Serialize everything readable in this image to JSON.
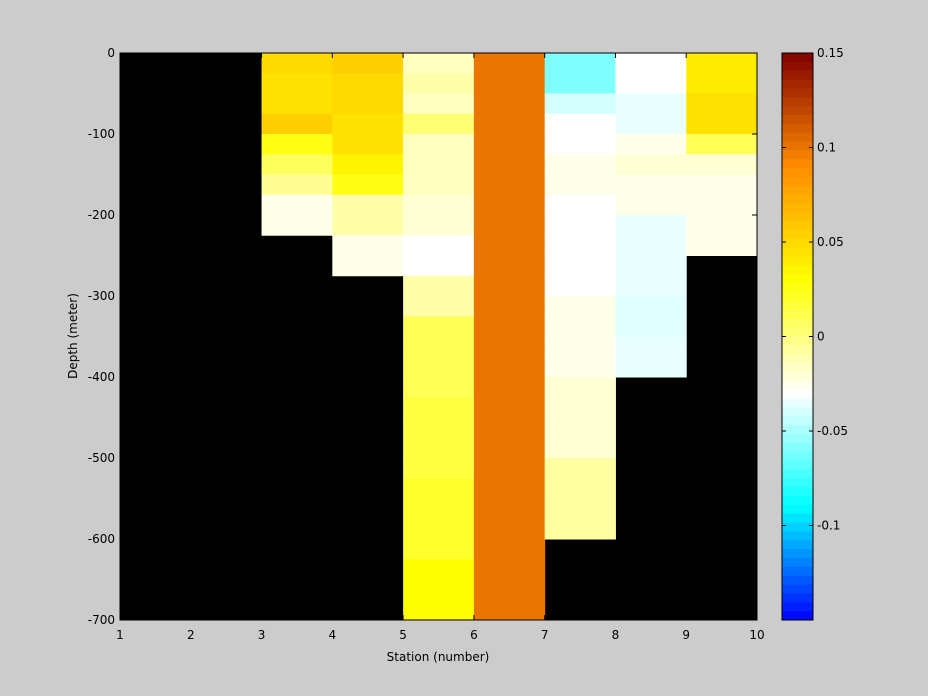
{
  "chart_data": {
    "type": "heatmap",
    "xlabel": "Station (number)",
    "ylabel": "Depth (meter)",
    "xlim": [
      1,
      10
    ],
    "ylim": [
      -700,
      0
    ],
    "x_ticks": [
      1,
      2,
      3,
      4,
      5,
      6,
      7,
      8,
      9,
      10
    ],
    "y_ticks": [
      0,
      -100,
      -200,
      -300,
      -400,
      -500,
      -600,
      -700
    ],
    "background_color": "#000000",
    "colorbar": {
      "clim": [
        -0.15,
        0.15
      ],
      "ticks": [
        0.15,
        0.1,
        0.05,
        0,
        -0.05,
        -0.1
      ],
      "colormap": [
        "#0000ff",
        "#00ffff",
        "#ffffff",
        "#ffff00",
        "#ff8c00",
        "#800000"
      ]
    },
    "cell_height_m": 25,
    "columns": [
      {
        "x0": 3,
        "x1": 4,
        "cells": [
          {
            "top": 0,
            "bottom": -25,
            "value": 0.05
          },
          {
            "top": -25,
            "bottom": -50,
            "value": 0.045
          },
          {
            "top": -50,
            "bottom": -75,
            "value": 0.045
          },
          {
            "top": -75,
            "bottom": -100,
            "value": 0.055
          },
          {
            "top": -100,
            "bottom": -125,
            "value": 0.025
          },
          {
            "top": -125,
            "bottom": -150,
            "value": 0.008
          },
          {
            "top": -150,
            "bottom": -175,
            "value": -0.005
          },
          {
            "top": -175,
            "bottom": -200,
            "value": -0.025
          },
          {
            "top": -200,
            "bottom": -225,
            "value": -0.025
          }
        ]
      },
      {
        "x0": 4,
        "x1": 5,
        "cells": [
          {
            "top": 0,
            "bottom": -25,
            "value": 0.055
          },
          {
            "top": -25,
            "bottom": -50,
            "value": 0.05
          },
          {
            "top": -50,
            "bottom": -75,
            "value": 0.05
          },
          {
            "top": -75,
            "bottom": -100,
            "value": 0.045
          },
          {
            "top": -100,
            "bottom": -125,
            "value": 0.045
          },
          {
            "top": -125,
            "bottom": -150,
            "value": 0.035
          },
          {
            "top": -150,
            "bottom": -175,
            "value": 0.025
          },
          {
            "top": -175,
            "bottom": -200,
            "value": -0.01
          },
          {
            "top": -200,
            "bottom": -225,
            "value": -0.01
          },
          {
            "top": -225,
            "bottom": -250,
            "value": -0.025
          },
          {
            "top": -250,
            "bottom": -275,
            "value": -0.025
          }
        ]
      },
      {
        "x0": 5,
        "x1": 6,
        "cells": [
          {
            "top": 0,
            "bottom": -25,
            "value": -0.015
          },
          {
            "top": -25,
            "bottom": -50,
            "value": -0.01
          },
          {
            "top": -50,
            "bottom": -75,
            "value": -0.015
          },
          {
            "top": -75,
            "bottom": -100,
            "value": 0.003
          },
          {
            "top": -100,
            "bottom": -125,
            "value": -0.015
          },
          {
            "top": -125,
            "bottom": -150,
            "value": -0.015
          },
          {
            "top": -150,
            "bottom": -175,
            "value": -0.015
          },
          {
            "top": -175,
            "bottom": -200,
            "value": -0.02
          },
          {
            "top": -200,
            "bottom": -225,
            "value": -0.02
          },
          {
            "top": -225,
            "bottom": -250,
            "value": -0.03
          },
          {
            "top": -250,
            "bottom": -275,
            "value": -0.03
          },
          {
            "top": -275,
            "bottom": -300,
            "value": -0.01
          },
          {
            "top": -300,
            "bottom": -325,
            "value": -0.01
          },
          {
            "top": -325,
            "bottom": -350,
            "value": 0.01
          },
          {
            "top": -350,
            "bottom": -375,
            "value": 0.01
          },
          {
            "top": -375,
            "bottom": -400,
            "value": 0.01
          },
          {
            "top": -400,
            "bottom": -425,
            "value": 0.01
          },
          {
            "top": -425,
            "bottom": -450,
            "value": 0.015
          },
          {
            "top": -450,
            "bottom": -475,
            "value": 0.015
          },
          {
            "top": -475,
            "bottom": -500,
            "value": 0.015
          },
          {
            "top": -500,
            "bottom": -525,
            "value": 0.015
          },
          {
            "top": -525,
            "bottom": -550,
            "value": 0.02
          },
          {
            "top": -550,
            "bottom": -575,
            "value": 0.02
          },
          {
            "top": -575,
            "bottom": -600,
            "value": 0.02
          },
          {
            "top": -600,
            "bottom": -625,
            "value": 0.02
          },
          {
            "top": -625,
            "bottom": -650,
            "value": 0.03
          },
          {
            "top": -650,
            "bottom": -675,
            "value": 0.03
          },
          {
            "top": -675,
            "bottom": -700,
            "value": 0.03
          }
        ]
      },
      {
        "x0": 6,
        "x1": 7,
        "cells": [
          {
            "top": 0,
            "bottom": -700,
            "value": 0.1
          }
        ]
      },
      {
        "x0": 7,
        "x1": 8,
        "cells": [
          {
            "top": 0,
            "bottom": -25,
            "value": -0.06
          },
          {
            "top": -25,
            "bottom": -50,
            "value": -0.06
          },
          {
            "top": -50,
            "bottom": -75,
            "value": -0.04
          },
          {
            "top": -75,
            "bottom": -100,
            "value": -0.03
          },
          {
            "top": -100,
            "bottom": -125,
            "value": -0.03
          },
          {
            "top": -125,
            "bottom": -150,
            "value": -0.025
          },
          {
            "top": -150,
            "bottom": -175,
            "value": -0.025
          },
          {
            "top": -175,
            "bottom": -200,
            "value": -0.03
          },
          {
            "top": -200,
            "bottom": -225,
            "value": -0.03
          },
          {
            "top": -225,
            "bottom": -250,
            "value": -0.03
          },
          {
            "top": -250,
            "bottom": -275,
            "value": -0.03
          },
          {
            "top": -275,
            "bottom": -300,
            "value": -0.03
          },
          {
            "top": -300,
            "bottom": -325,
            "value": -0.025
          },
          {
            "top": -325,
            "bottom": -350,
            "value": -0.025
          },
          {
            "top": -350,
            "bottom": -375,
            "value": -0.025
          },
          {
            "top": -375,
            "bottom": -400,
            "value": -0.025
          },
          {
            "top": -400,
            "bottom": -425,
            "value": -0.02
          },
          {
            "top": -425,
            "bottom": -450,
            "value": -0.02
          },
          {
            "top": -450,
            "bottom": -475,
            "value": -0.02
          },
          {
            "top": -475,
            "bottom": -500,
            "value": -0.02
          },
          {
            "top": -500,
            "bottom": -525,
            "value": -0.008
          },
          {
            "top": -525,
            "bottom": -550,
            "value": -0.008
          },
          {
            "top": -550,
            "bottom": -575,
            "value": -0.008
          },
          {
            "top": -575,
            "bottom": -600,
            "value": -0.008
          }
        ]
      },
      {
        "x0": 8,
        "x1": 9,
        "cells": [
          {
            "top": 0,
            "bottom": -25,
            "value": -0.03
          },
          {
            "top": -25,
            "bottom": -50,
            "value": -0.03
          },
          {
            "top": -50,
            "bottom": -75,
            "value": -0.035
          },
          {
            "top": -75,
            "bottom": -100,
            "value": -0.035
          },
          {
            "top": -100,
            "bottom": -125,
            "value": -0.025
          },
          {
            "top": -125,
            "bottom": -150,
            "value": -0.02
          },
          {
            "top": -150,
            "bottom": -175,
            "value": -0.025
          },
          {
            "top": -175,
            "bottom": -200,
            "value": -0.025
          },
          {
            "top": -200,
            "bottom": -225,
            "value": -0.035
          },
          {
            "top": -225,
            "bottom": -250,
            "value": -0.035
          },
          {
            "top": -250,
            "bottom": -275,
            "value": -0.035
          },
          {
            "top": -275,
            "bottom": -300,
            "value": -0.035
          },
          {
            "top": -300,
            "bottom": -325,
            "value": -0.037
          },
          {
            "top": -325,
            "bottom": -350,
            "value": -0.037
          },
          {
            "top": -350,
            "bottom": -375,
            "value": -0.035
          },
          {
            "top": -375,
            "bottom": -400,
            "value": -0.035
          }
        ]
      },
      {
        "x0": 9,
        "x1": 10,
        "cells": [
          {
            "top": 0,
            "bottom": -25,
            "value": 0.04
          },
          {
            "top": -25,
            "bottom": -50,
            "value": 0.04
          },
          {
            "top": -50,
            "bottom": -75,
            "value": 0.045
          },
          {
            "top": -75,
            "bottom": -100,
            "value": 0.045
          },
          {
            "top": -100,
            "bottom": -125,
            "value": 0.01
          },
          {
            "top": -125,
            "bottom": -150,
            "value": -0.02
          },
          {
            "top": -150,
            "bottom": -175,
            "value": -0.025
          },
          {
            "top": -175,
            "bottom": -200,
            "value": -0.025
          },
          {
            "top": -200,
            "bottom": -225,
            "value": -0.025
          },
          {
            "top": -225,
            "bottom": -250,
            "value": -0.025
          }
        ]
      }
    ]
  }
}
